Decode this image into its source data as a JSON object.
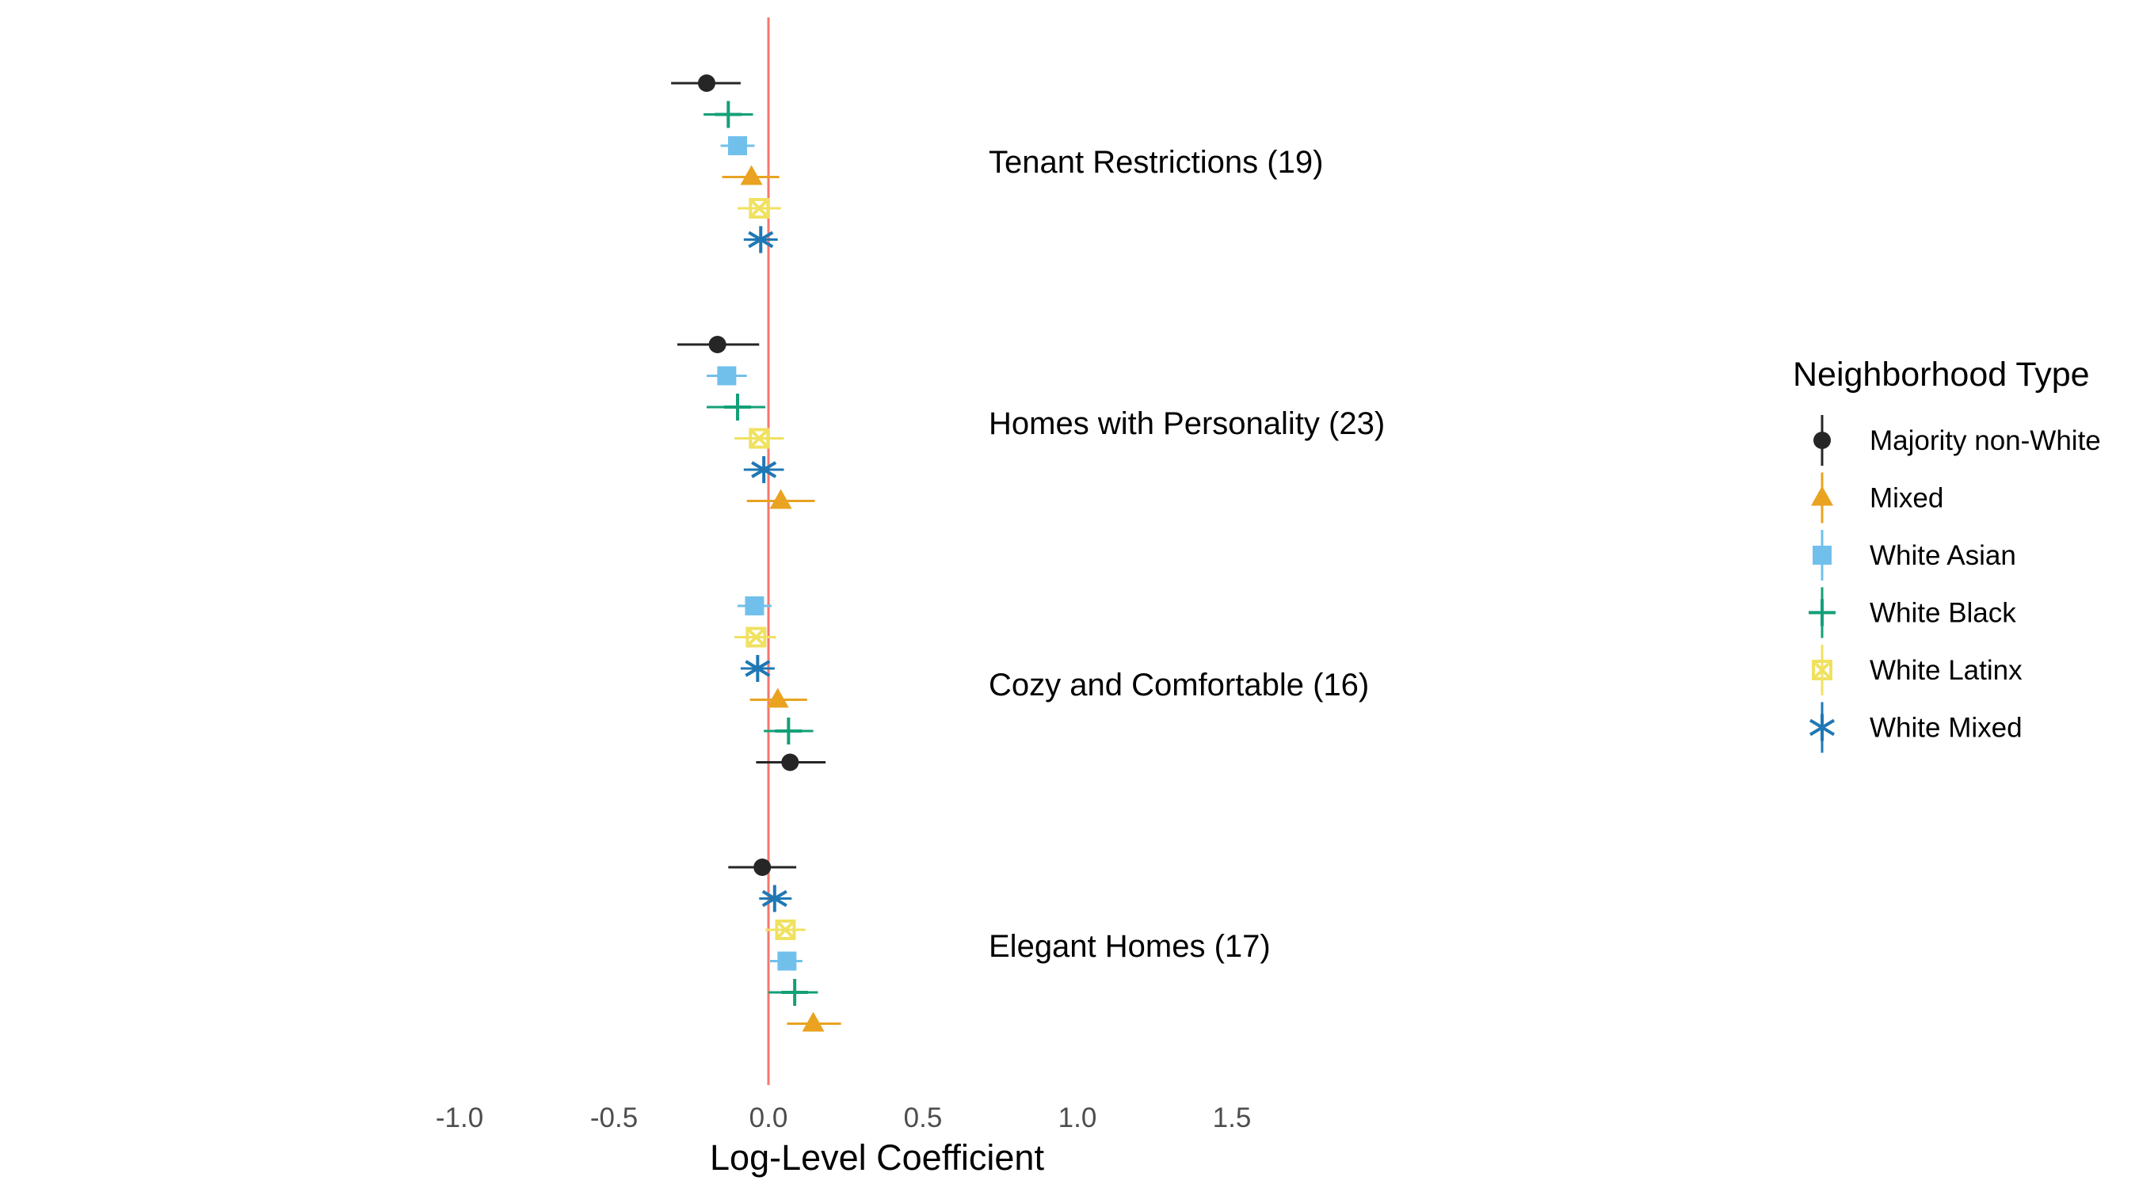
{
  "chart_data": {
    "type": "scatter",
    "subtype": "coefficient-plot",
    "xlabel": "Log-Level Coefficient",
    "xlim": [
      -1.05,
      2.1
    ],
    "x_ticks": [
      -1.0,
      -0.5,
      0.0,
      0.5,
      1.0,
      1.5
    ],
    "x_tick_labels": [
      "-1.0",
      "-0.5",
      "0.0",
      "0.5",
      "1.0",
      "1.5"
    ],
    "reference_line": {
      "x": 0,
      "color": "#F8766D"
    },
    "grid": false,
    "legend": {
      "title": "Neighborhood Type",
      "placement": "right",
      "entries": [
        "Majority non-White",
        "Mixed",
        "White Asian",
        "White Black",
        "White Latinx",
        "White Mixed"
      ]
    },
    "series": [
      {
        "name": "Majority non-White",
        "color": "#262626",
        "shape": "circle"
      },
      {
        "name": "Mixed",
        "color": "#E9A321",
        "shape": "triangle"
      },
      {
        "name": "White Asian",
        "color": "#71C0EC",
        "shape": "square"
      },
      {
        "name": "White Black",
        "color": "#13A077",
        "shape": "plus"
      },
      {
        "name": "White Latinx",
        "color": "#F0E160",
        "shape": "boxed-x"
      },
      {
        "name": "White Mixed",
        "color": "#1F78B4",
        "shape": "asterisk"
      }
    ],
    "groups": [
      {
        "label": "Tenant Restrictions (19)",
        "rows": [
          {
            "series": "Majority non-White",
            "estimate": -0.2,
            "lower": -0.315,
            "upper": -0.09
          },
          {
            "series": "White Black",
            "estimate": -0.13,
            "lower": -0.21,
            "upper": -0.05
          },
          {
            "series": "White Asian",
            "estimate": -0.1,
            "lower": -0.155,
            "upper": -0.045
          },
          {
            "series": "Mixed",
            "estimate": -0.055,
            "lower": -0.15,
            "upper": 0.035
          },
          {
            "series": "White Latinx",
            "estimate": -0.03,
            "lower": -0.1,
            "upper": 0.04
          },
          {
            "series": "White Mixed",
            "estimate": -0.025,
            "lower": -0.08,
            "upper": 0.03
          }
        ]
      },
      {
        "label": "Homes with Personality (23)",
        "rows": [
          {
            "series": "Majority non-White",
            "estimate": -0.165,
            "lower": -0.295,
            "upper": -0.03
          },
          {
            "series": "White Asian",
            "estimate": -0.135,
            "lower": -0.2,
            "upper": -0.07
          },
          {
            "series": "White Black",
            "estimate": -0.1,
            "lower": -0.2,
            "upper": -0.01
          },
          {
            "series": "White Latinx",
            "estimate": -0.03,
            "lower": -0.11,
            "upper": 0.05
          },
          {
            "series": "White Mixed",
            "estimate": -0.015,
            "lower": -0.08,
            "upper": 0.05
          },
          {
            "series": "Mixed",
            "estimate": 0.04,
            "lower": -0.07,
            "upper": 0.15
          }
        ]
      },
      {
        "label": "Cozy and Comfortable (16)",
        "rows": [
          {
            "series": "White Asian",
            "estimate": -0.045,
            "lower": -0.1,
            "upper": 0.01
          },
          {
            "series": "White Latinx",
            "estimate": -0.04,
            "lower": -0.11,
            "upper": 0.025
          },
          {
            "series": "White Mixed",
            "estimate": -0.035,
            "lower": -0.09,
            "upper": 0.02
          },
          {
            "series": "Mixed",
            "estimate": 0.03,
            "lower": -0.06,
            "upper": 0.125
          },
          {
            "series": "White Black",
            "estimate": 0.065,
            "lower": -0.015,
            "upper": 0.145
          },
          {
            "series": "Majority non-White",
            "estimate": 0.07,
            "lower": -0.04,
            "upper": 0.185
          }
        ]
      },
      {
        "label": "Elegant Homes (17)",
        "rows": [
          {
            "series": "Majority non-White",
            "estimate": -0.02,
            "lower": -0.13,
            "upper": 0.09
          },
          {
            "series": "White Mixed",
            "estimate": 0.02,
            "lower": -0.03,
            "upper": 0.075
          },
          {
            "series": "White Latinx",
            "estimate": 0.055,
            "lower": -0.01,
            "upper": 0.12
          },
          {
            "series": "White Asian",
            "estimate": 0.06,
            "lower": 0.005,
            "upper": 0.11
          },
          {
            "series": "White Black",
            "estimate": 0.085,
            "lower": 0.0,
            "upper": 0.16
          },
          {
            "series": "Mixed",
            "estimate": 0.145,
            "lower": 0.06,
            "upper": 0.235
          }
        ]
      }
    ]
  }
}
